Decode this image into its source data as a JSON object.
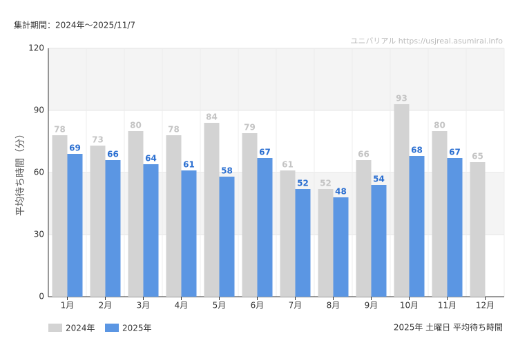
{
  "chart_data": {
    "type": "bar",
    "subtitle": "集計期間：2024年～2025/11/7",
    "source": "ユニバリアル  https://usjreal.asumirai.info",
    "note": "2025年 土曜日 平均待ち時間",
    "y_label": "平均待ち時間（分）",
    "categories": [
      "1月",
      "2月",
      "3月",
      "4月",
      "5月",
      "6月",
      "7月",
      "8月",
      "9月",
      "10月",
      "11月",
      "12月"
    ],
    "series": [
      {
        "name": "2024年",
        "color": "#d3d3d3",
        "label_color": "#c4c4c4",
        "values": [
          78,
          73,
          80,
          78,
          84,
          79,
          61,
          52,
          66,
          93,
          80,
          65
        ]
      },
      {
        "name": "2025年",
        "color": "#5b96e3",
        "label_color": "#2b6fd1",
        "values": [
          69,
          66,
          64,
          61,
          58,
          67,
          52,
          48,
          54,
          68,
          67,
          null
        ]
      }
    ],
    "ylim": [
      0,
      120
    ],
    "yticks": [
      0,
      30,
      60,
      90,
      120
    ],
    "grid": true
  }
}
